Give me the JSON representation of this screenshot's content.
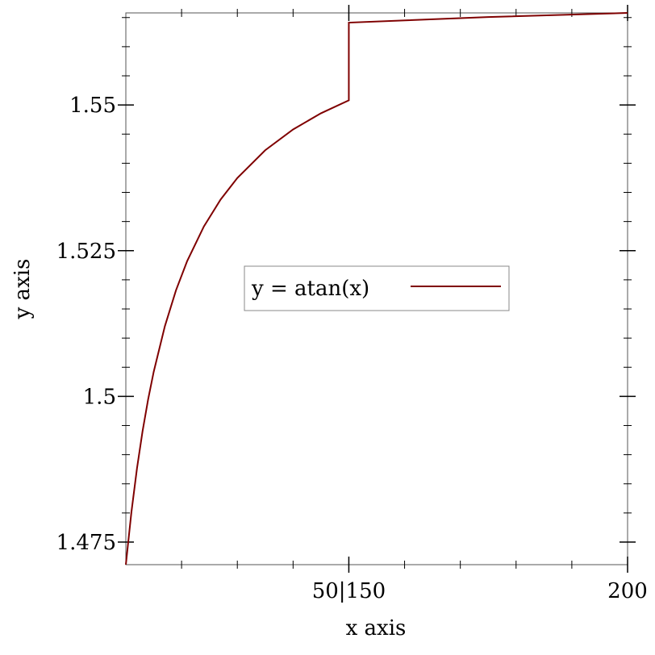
{
  "chart_data": {
    "type": "line",
    "x_label": "x axis",
    "y_label": "y axis",
    "x": [
      10,
      11,
      12,
      13,
      14,
      15,
      17,
      19,
      21,
      24,
      27,
      30,
      35,
      40,
      45,
      50,
      150,
      175,
      200
    ],
    "series": [
      {
        "name": "y = atan(x)",
        "color": "#7f0000",
        "values": [
          1.471128,
          1.480136,
          1.487655,
          1.494024,
          1.499489,
          1.504228,
          1.51204,
          1.518213,
          1.523213,
          1.529153,
          1.533776,
          1.537475,
          1.542232,
          1.545801,
          1.548577,
          1.550799,
          1.564129,
          1.565082,
          1.565796
        ]
      }
    ],
    "xlim": [
      10,
      200
    ],
    "x_break": [
      50,
      150
    ],
    "xticks": [
      {
        "value": 50,
        "label": "50|150"
      },
      200
    ],
    "x_minor_ticks": [
      20,
      30,
      40,
      160,
      170,
      180,
      190
    ],
    "ylim": [
      1.471128,
      1.565796
    ],
    "yticks": [
      1.475,
      1.5,
      1.525,
      1.55
    ],
    "y_minor_ticks": [
      1.48,
      1.485,
      1.49,
      1.495,
      1.505,
      1.51,
      1.515,
      1.52,
      1.53,
      1.535,
      1.54,
      1.545,
      1.555,
      1.56,
      1.565
    ],
    "legend": "center"
  }
}
